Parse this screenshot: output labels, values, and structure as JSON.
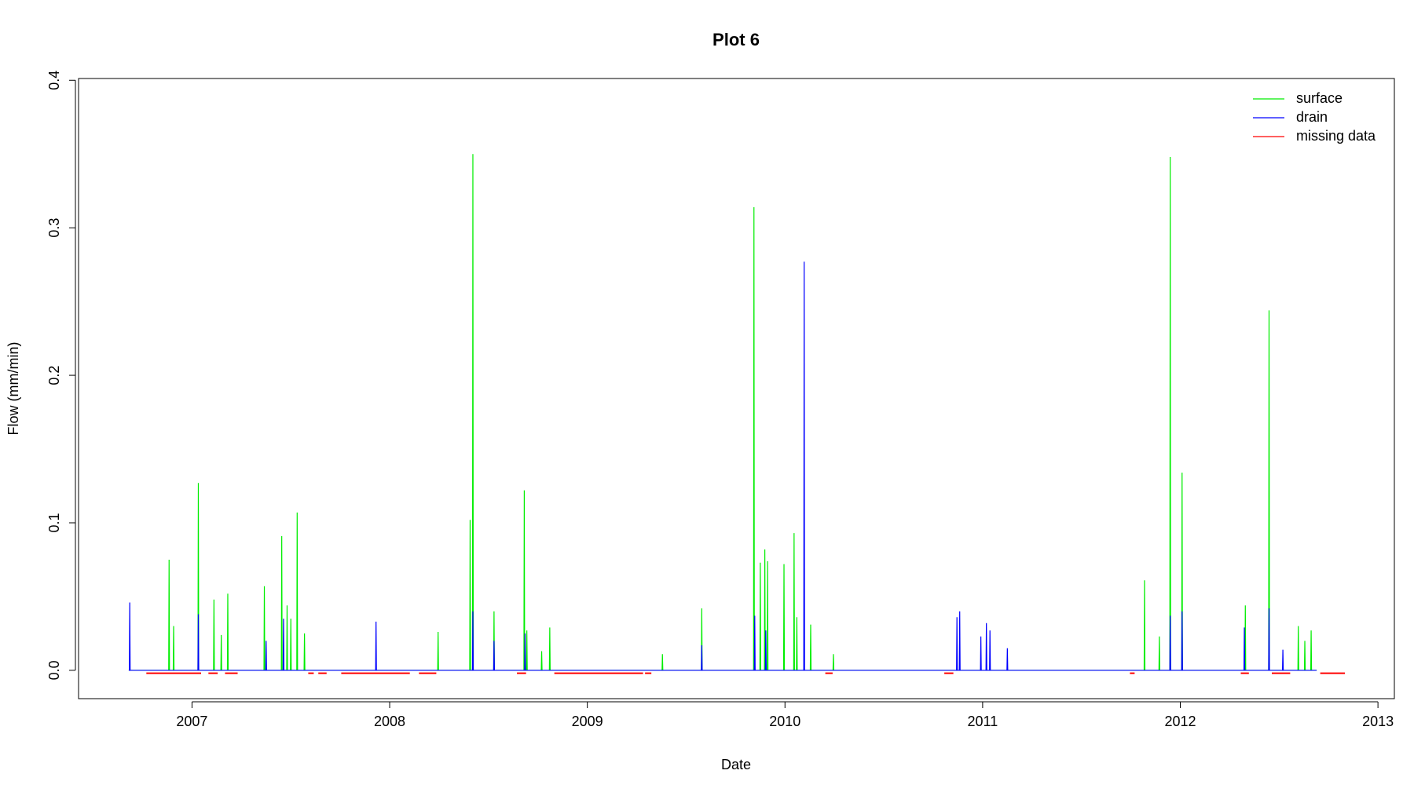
{
  "chart_data": {
    "type": "line",
    "title": "Plot 6",
    "x_label": "Date",
    "y_label": "Flow (mm/min)",
    "xlim": [
      2006.426,
      2013.083
    ],
    "xticks": [
      2007,
      2008,
      2009,
      2010,
      2011,
      2012,
      2013
    ],
    "ylim": [
      -0.0192,
      0.4012
    ],
    "yticks": [
      {
        "value": 0,
        "label": "0.0"
      },
      0.1,
      0.2,
      0.3,
      0.4
    ],
    "grid": false,
    "legend": "topright",
    "series": [
      {
        "name": "surface",
        "color": "#00ee00",
        "x": [
          2006.68,
          2006.882,
          2006.884,
          2006.886,
          2006.905,
          2006.907,
          2006.909,
          2007.03,
          2007.032,
          2007.034,
          2007.109,
          2007.111,
          2007.113,
          2007.146,
          2007.148,
          2007.15,
          2007.179,
          2007.181,
          2007.183,
          2007.364,
          2007.366,
          2007.368,
          2007.452,
          2007.454,
          2007.456,
          2007.479,
          2007.481,
          2007.483,
          2007.498,
          2007.5,
          2007.502,
          2007.53,
          2007.532,
          2007.534,
          2007.567,
          2007.569,
          2007.571,
          2008.243,
          2008.245,
          2008.247,
          2008.405,
          2008.407,
          2008.409,
          2008.419,
          2008.421,
          2008.423,
          2008.526,
          2008.528,
          2008.53,
          2008.679,
          2008.681,
          2008.683,
          2008.692,
          2008.694,
          2008.696,
          2008.767,
          2008.769,
          2008.771,
          2008.808,
          2008.81,
          2008.812,
          2009.378,
          2009.38,
          2009.382,
          2009.577,
          2009.579,
          2009.581,
          2009.841,
          2009.843,
          2009.845,
          2009.873,
          2009.875,
          2009.877,
          2009.896,
          2009.898,
          2009.9,
          2009.91,
          2009.912,
          2009.914,
          2009.993,
          2009.995,
          2009.997,
          2010.044,
          2010.046,
          2010.048,
          2010.058,
          2010.06,
          2010.062,
          2010.128,
          2010.13,
          2010.132,
          2010.243,
          2010.245,
          2010.247,
          2011.817,
          2011.819,
          2011.821,
          2011.892,
          2011.894,
          2011.896,
          2011.947,
          2011.949,
          2011.951,
          2012.007,
          2012.009,
          2012.011,
          2012.327,
          2012.329,
          2012.331,
          2012.447,
          2012.449,
          2012.451,
          2012.595,
          2012.597,
          2012.599,
          2012.628,
          2012.63,
          2012.632,
          2012.66,
          2012.662,
          2012.664,
          2012.69
        ],
        "values": [
          0,
          0,
          0.075,
          0,
          0,
          0.03,
          0,
          0,
          0.127,
          0,
          0,
          0.048,
          0,
          0,
          0.024,
          0,
          0,
          0.052,
          0,
          0,
          0.057,
          0,
          0,
          0.091,
          0,
          0,
          0.044,
          0,
          0,
          0.035,
          0,
          0,
          0.107,
          0,
          0,
          0.025,
          0,
          0,
          0.026,
          0,
          0,
          0.102,
          0,
          0,
          0.35,
          0,
          0,
          0.04,
          0,
          0,
          0.122,
          0,
          0,
          0.027,
          0,
          0,
          0.013,
          0,
          0,
          0.029,
          0,
          0,
          0.011,
          0,
          0,
          0.042,
          0,
          0,
          0.314,
          0,
          0,
          0.073,
          0,
          0,
          0.082,
          0,
          0,
          0.074,
          0,
          0,
          0.072,
          0,
          0,
          0.093,
          0,
          0,
          0.036,
          0,
          0,
          0.031,
          0,
          0,
          0.011,
          0,
          0,
          0.061,
          0,
          0,
          0.023,
          0,
          0,
          0.348,
          0,
          0,
          0.134,
          0,
          0,
          0.044,
          0,
          0,
          0.244,
          0,
          0,
          0.03,
          0,
          0,
          0.02,
          0,
          0,
          0.027,
          0,
          0
        ]
      },
      {
        "name": "drain",
        "color": "#0000ff",
        "x": [
          2006.68,
          2006.683,
          2006.685,
          2006.687,
          2007.03,
          2007.032,
          2007.034,
          2007.373,
          2007.375,
          2007.377,
          2007.461,
          2007.463,
          2007.465,
          2007.929,
          2007.931,
          2007.933,
          2008.419,
          2008.421,
          2008.423,
          2008.526,
          2008.528,
          2008.53,
          2008.683,
          2008.685,
          2008.687,
          2009.577,
          2009.579,
          2009.581,
          2009.845,
          2009.847,
          2009.849,
          2009.901,
          2009.903,
          2009.905,
          2010.095,
          2010.097,
          2010.099,
          2010.868,
          2010.87,
          2010.872,
          2010.882,
          2010.884,
          2010.886,
          2010.989,
          2010.991,
          2010.993,
          2011.017,
          2011.019,
          2011.021,
          2011.035,
          2011.037,
          2011.039,
          2011.123,
          2011.125,
          2011.127,
          2011.947,
          2011.949,
          2011.951,
          2012.007,
          2012.009,
          2012.011,
          2012.322,
          2012.324,
          2012.326,
          2012.447,
          2012.449,
          2012.451,
          2012.517,
          2012.519,
          2012.521,
          2012.69
        ],
        "values": [
          0,
          0,
          0.046,
          0,
          0,
          0.038,
          0,
          0,
          0.02,
          0,
          0,
          0.035,
          0,
          0,
          0.033,
          0,
          0,
          0.04,
          0,
          0,
          0.02,
          0,
          0,
          0.025,
          0,
          0,
          0.017,
          0,
          0,
          0.037,
          0,
          0,
          0.027,
          0,
          0,
          0.277,
          0,
          0,
          0.036,
          0,
          0,
          0.04,
          0,
          0,
          0.023,
          0,
          0,
          0.032,
          0,
          0,
          0.027,
          0,
          0,
          0.015,
          0,
          0,
          0.037,
          0,
          0,
          0.04,
          0,
          0,
          0.029,
          0,
          0,
          0.042,
          0,
          0,
          0.014,
          0,
          0
        ]
      },
      {
        "name": "missing data",
        "color": "#ff0000",
        "x": [
          2006.769,
          2007.046,
          2007.046,
          2007.083,
          2007.13,
          2007.13,
          2007.167,
          2007.231,
          2007.231,
          2007.588,
          2007.616,
          2007.616,
          2007.639,
          2007.681,
          2007.681,
          2007.755,
          2008.102,
          2008.102,
          2008.148,
          2008.236,
          2008.236,
          2008.644,
          2008.69,
          2008.69,
          2008.833,
          2009.282,
          2009.282,
          2009.292,
          2009.324,
          2009.324,
          2010.204,
          2010.241,
          2010.241,
          2010.806,
          2010.852,
          2010.852,
          2011.745,
          2011.769,
          2011.769,
          2012.306,
          2012.347,
          2012.347,
          2012.463,
          2012.556,
          2012.556,
          2012.708,
          2012.833
        ],
        "values": [
          -0.002,
          -0.002,
          null,
          -0.002,
          -0.002,
          null,
          -0.002,
          -0.002,
          null,
          -0.002,
          -0.002,
          null,
          -0.002,
          -0.002,
          null,
          -0.002,
          -0.002,
          null,
          -0.002,
          -0.002,
          null,
          -0.002,
          -0.002,
          null,
          -0.002,
          -0.002,
          null,
          -0.002,
          -0.002,
          null,
          -0.002,
          -0.002,
          null,
          -0.002,
          -0.002,
          null,
          -0.002,
          -0.002,
          null,
          -0.002,
          -0.002,
          null,
          -0.002,
          -0.002,
          null,
          -0.002,
          -0.002
        ]
      }
    ]
  }
}
